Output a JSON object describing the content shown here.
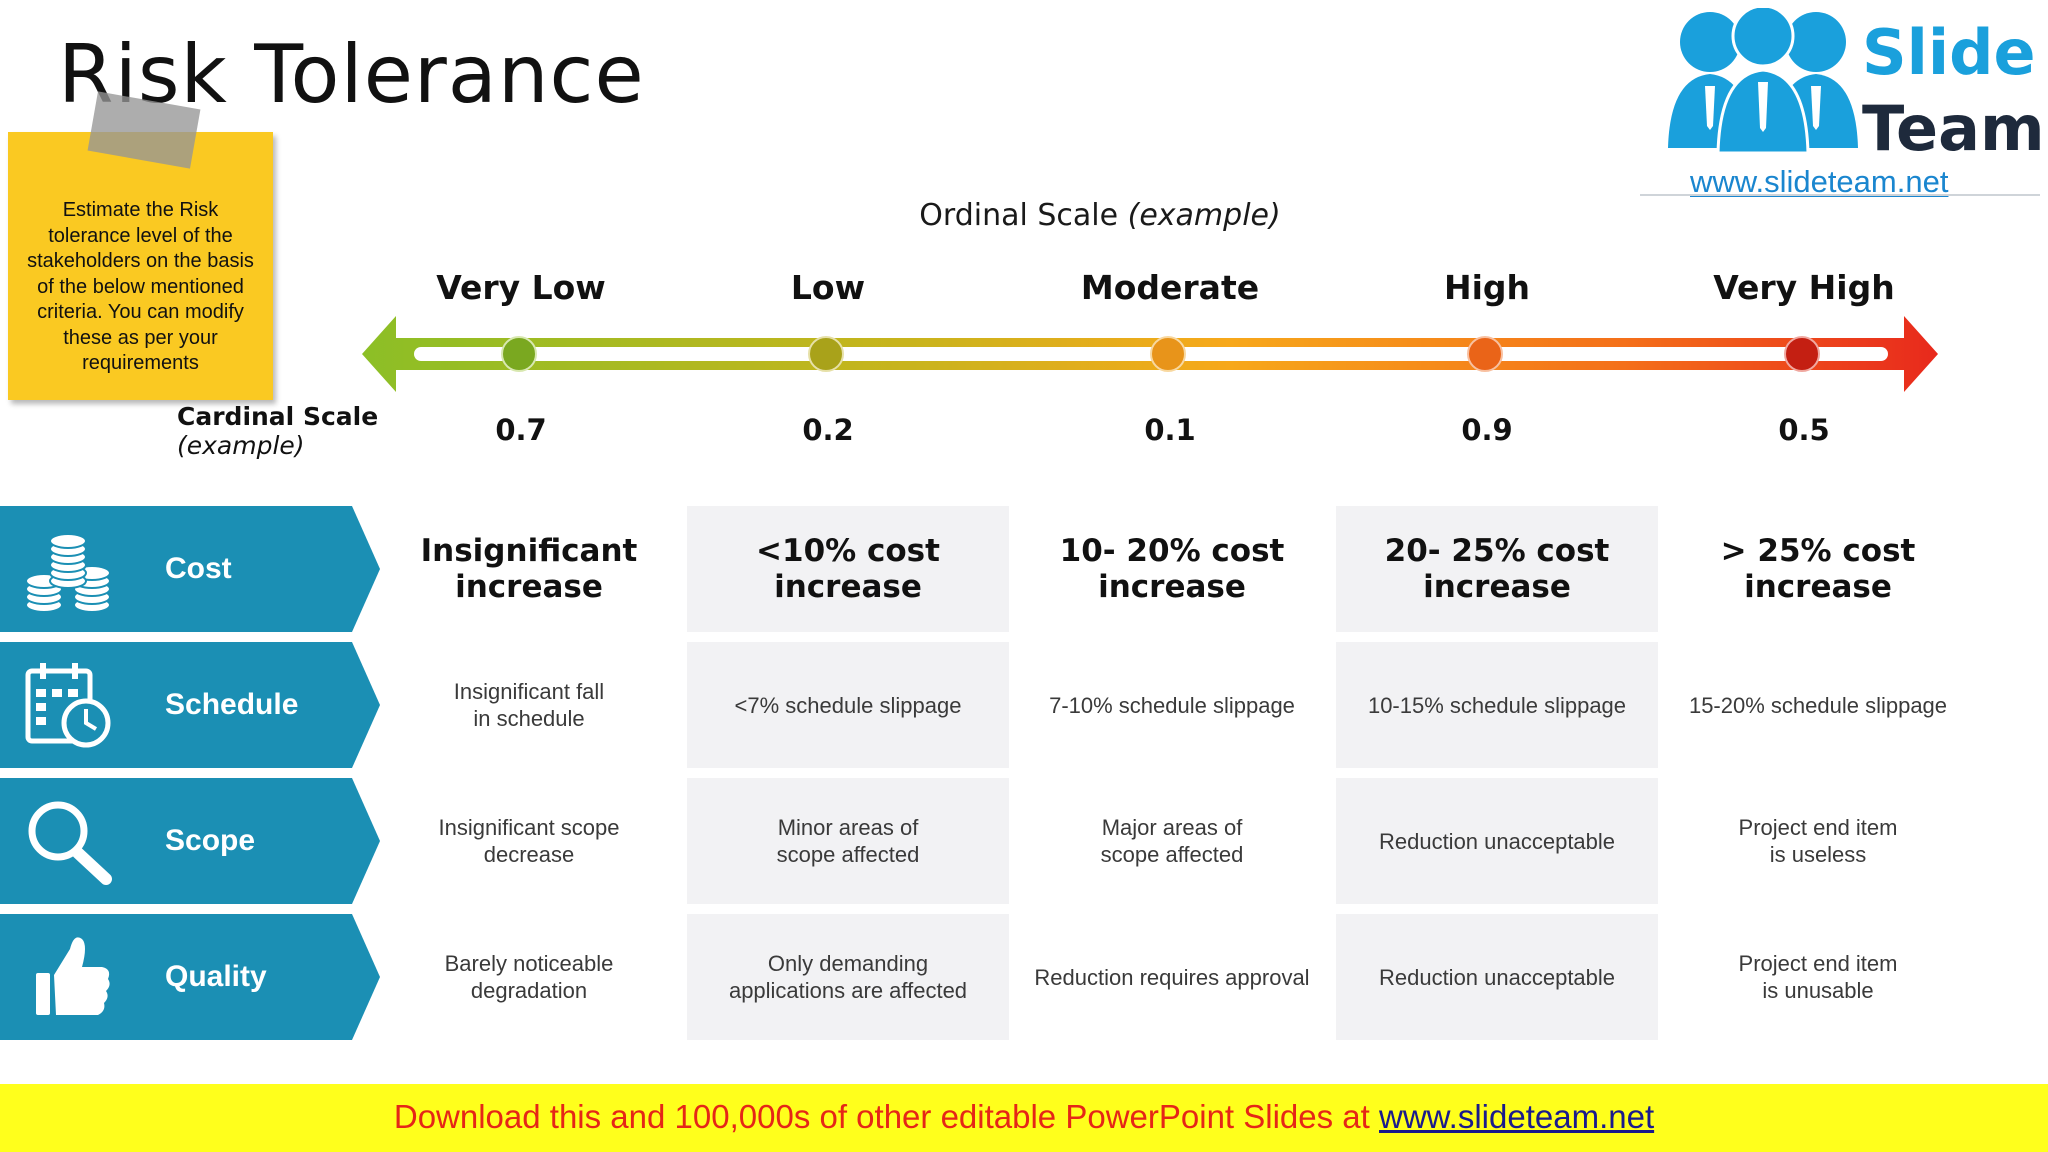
{
  "title": "Risk Tolerance",
  "note": {
    "text": "Estimate the Risk tolerance level of the stakeholders on the basis of the below mentioned criteria. You can modify these as per your requirements"
  },
  "logo": {
    "word1": "Slide",
    "word2": "Team",
    "url": "www.slideteam.net"
  },
  "scale": {
    "ordinal_label": "Ordinal Scale",
    "ordinal_suffix": "(example)",
    "cardinal_label": "Cardinal Scale",
    "cardinal_suffix": "(example)",
    "levels": [
      {
        "label": "Very Low",
        "value": "0.7",
        "color": "#7aa820"
      },
      {
        "label": "Low",
        "value": "0.2",
        "color": "#a9a21a"
      },
      {
        "label": "Moderate",
        "value": "0.1",
        "color": "#e8941a"
      },
      {
        "label": "High",
        "value": "0.9",
        "color": "#ea6418"
      },
      {
        "label": "Very High",
        "value": "0.5",
        "color": "#c41f12"
      }
    ]
  },
  "colors": {
    "row_label_bg": "#1b8fb4",
    "arrow_start": "#8cbf26",
    "arrow_mid": "#f7a81b",
    "arrow_end": "#e8291c",
    "footer_bg": "#ffff1c"
  },
  "rows": [
    {
      "label": "Cost",
      "icon": "coins-icon",
      "cells": [
        "Insignificant increase",
        "<10% cost increase",
        "10- 20% cost increase",
        "20- 25% cost increase",
        "> 25% cost increase"
      ]
    },
    {
      "label": "Schedule",
      "icon": "calendar-clock-icon",
      "cells": [
        "Insignificant fall in schedule",
        "<7% schedule slippage",
        "7-10% schedule slippage",
        "10-15% schedule slippage",
        "15-20% schedule slippage"
      ]
    },
    {
      "label": "Scope",
      "icon": "magnifier-icon",
      "cells": [
        "Insignificant scope decrease",
        "Minor areas of scope affected",
        "Major areas of scope affected",
        "Reduction unacceptable",
        "Project end item is useless"
      ]
    },
    {
      "label": "Quality",
      "icon": "thumbs-up-icon",
      "cells": [
        "Barely noticeable degradation",
        "Only demanding applications are affected",
        "Reduction requires approval",
        "Reduction unacceptable",
        "Project end item is unusable"
      ]
    }
  ],
  "footer": {
    "text": "Download this and 100,000s of other editable PowerPoint Slides at ",
    "url": "www.slideteam.net"
  }
}
